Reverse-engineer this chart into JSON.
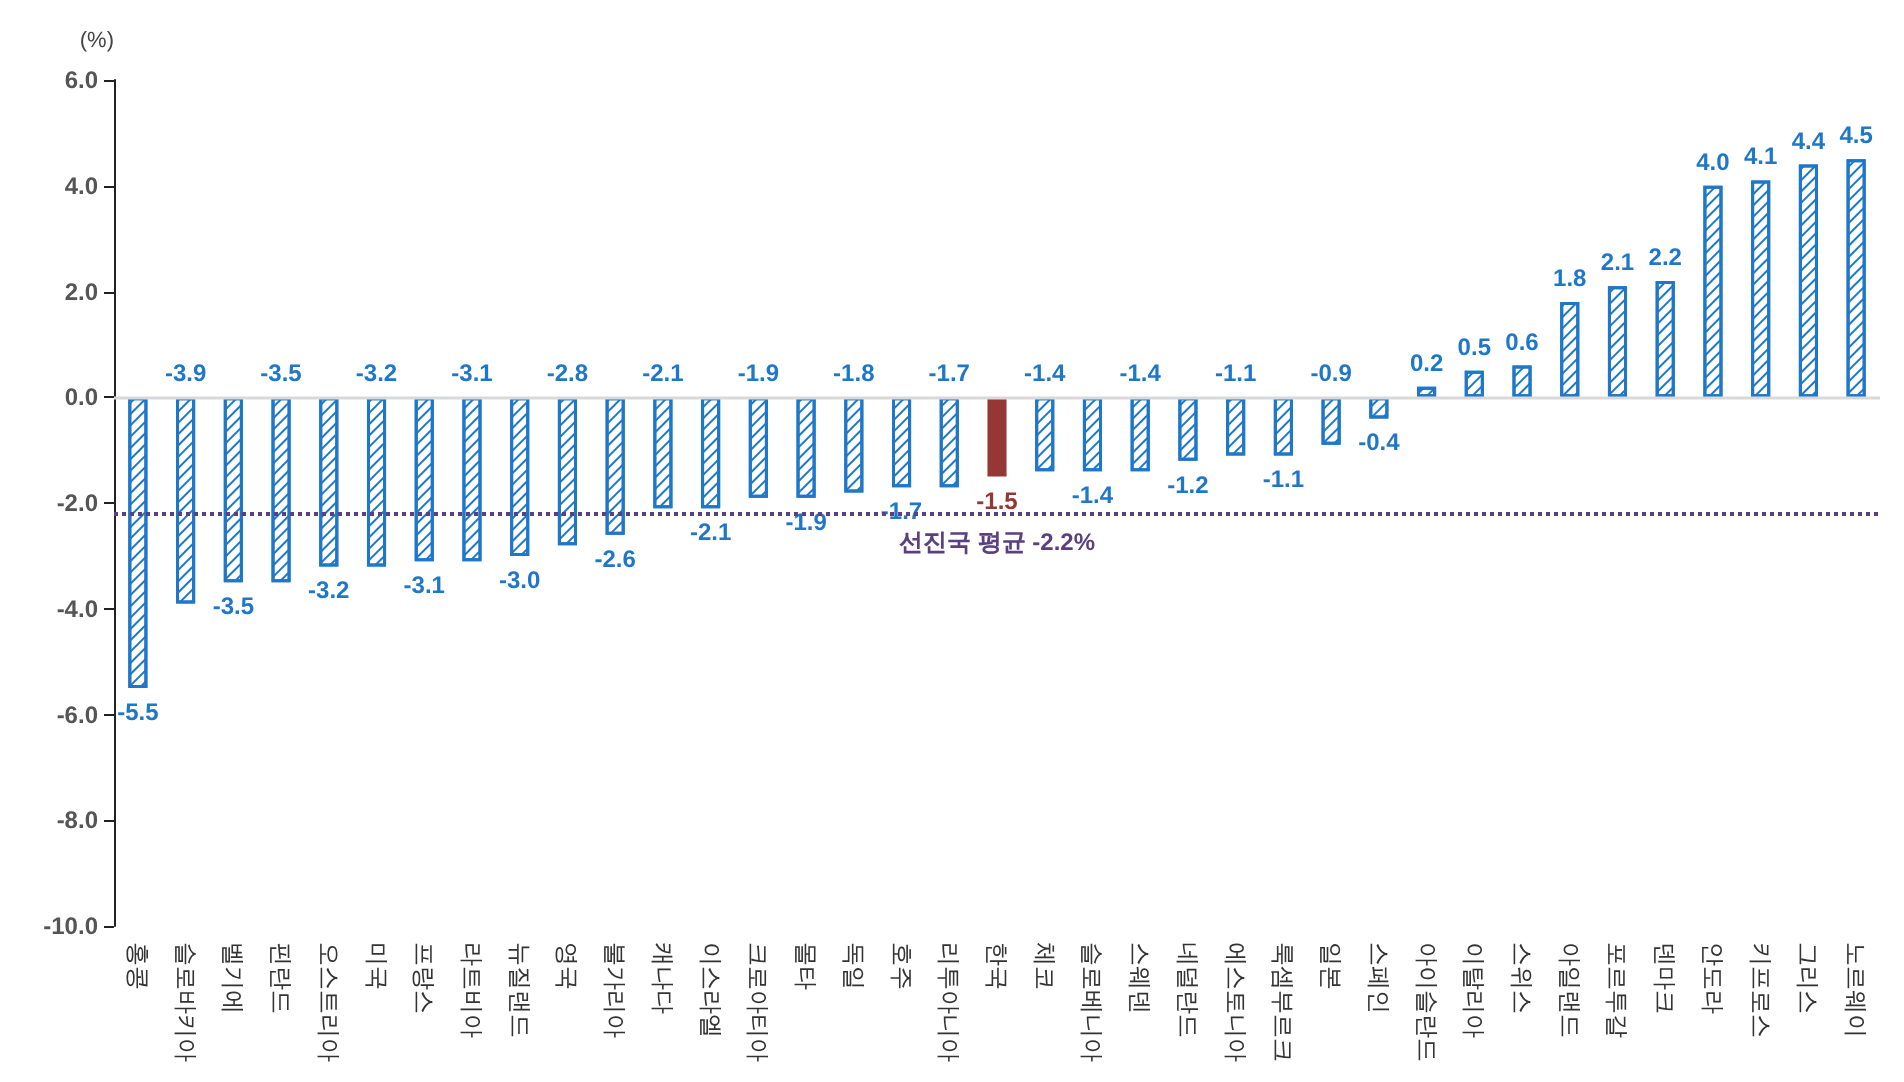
{
  "chart_data": {
    "type": "bar",
    "ylabel": "(%)",
    "categories": [
      "홍콩",
      "슬로바키아",
      "벨기에",
      "핀란드",
      "오스트리아",
      "미국",
      "프랑스",
      "라트비아",
      "뉴질랜드",
      "영국",
      "불가리아",
      "캐나다",
      "이스라엘",
      "크로아티아",
      "몰타",
      "독일",
      "호주",
      "리투아니아",
      "한국",
      "체코",
      "슬로베니아",
      "스웨덴",
      "네덜란드",
      "에스토니아",
      "룩셈부르크",
      "일본",
      "스페인",
      "아이슬란드",
      "이탈리아",
      "스위스",
      "아일랜드",
      "포르투갈",
      "덴마크",
      "안도라",
      "키프로스",
      "그리스",
      "노르웨이"
    ],
    "values": [
      -5.5,
      -3.9,
      -3.5,
      -3.5,
      -3.2,
      -3.2,
      -3.1,
      -3.1,
      -3.0,
      -2.8,
      -2.6,
      -2.1,
      -2.1,
      -1.9,
      -1.9,
      -1.8,
      -1.7,
      -1.7,
      -1.5,
      -1.4,
      -1.4,
      -1.4,
      -1.2,
      -1.1,
      -1.1,
      -0.9,
      -0.4,
      0.2,
      0.5,
      0.6,
      1.8,
      2.1,
      2.2,
      4.0,
      4.1,
      4.4,
      4.5
    ],
    "colors": [
      "#1f77c9",
      "#1f77c9",
      "#1f77c9",
      "#1f77c9",
      "#1f77c9",
      "#1f77c9",
      "#1f77c9",
      "#1f77c9",
      "#1f77c9",
      "#1f77c9",
      "#1f77c9",
      "#1f77c9",
      "#1f77c9",
      "#1f77c9",
      "#1f77c9",
      "#1f77c9",
      "#1f77c9",
      "#1f77c9",
      "#953735",
      "#1f77c9",
      "#1f77c9",
      "#1f77c9",
      "#1f77c9",
      "#1f77c9",
      "#1f77c9",
      "#1f77c9",
      "#1f77c9",
      "#1f77c9",
      "#1f77c9",
      "#1f77c9",
      "#1f77c9",
      "#1f77c9",
      "#1f77c9",
      "#1f77c9",
      "#1f77c9",
      "#1f77c9",
      "#1f77c9"
    ],
    "value_labels": [
      "-5.5",
      "-3.9",
      "-3.5",
      "-3.5",
      "-3.2",
      "-3.2",
      "-3.1",
      "-3.1",
      "-3.0",
      "-2.8",
      "-2.6",
      "-2.1",
      "-2.1",
      "-1.9",
      "-1.9",
      "-1.8",
      "-1.7",
      "-1.7",
      "-1.5",
      "-1.4",
      "-1.4",
      "-1.4",
      "-1.2",
      "-1.1",
      "-1.1",
      "-0.9",
      "-0.4",
      "0.2",
      "0.5",
      "0.6",
      "1.8",
      "2.1",
      "2.2",
      "4.0",
      "4.1",
      "4.4",
      "4.5"
    ],
    "ylim": [
      -10,
      6
    ],
    "yticks": [
      {
        "value": -10,
        "label": "-10.0"
      },
      {
        "value": -8,
        "label": "-8.0"
      },
      {
        "value": -6,
        "label": "-6.0"
      },
      {
        "value": -4,
        "label": "-4.0"
      },
      {
        "value": -2,
        "label": "-2.0"
      },
      {
        "value": 0,
        "label": "0.0"
      },
      {
        "value": 2,
        "label": "2.0"
      },
      {
        "value": 4,
        "label": "4.0"
      },
      {
        "value": 6,
        "label": "6.0"
      }
    ],
    "ref_lines": [
      {
        "axis": "y",
        "value": 0,
        "color": "#d9d9d9",
        "line_style": "solid"
      },
      {
        "axis": "y",
        "value": -2.2,
        "label": "선진국 평균 -2.2%",
        "color": "#5b4080",
        "line_style": "dotted"
      }
    ],
    "grid": false
  }
}
